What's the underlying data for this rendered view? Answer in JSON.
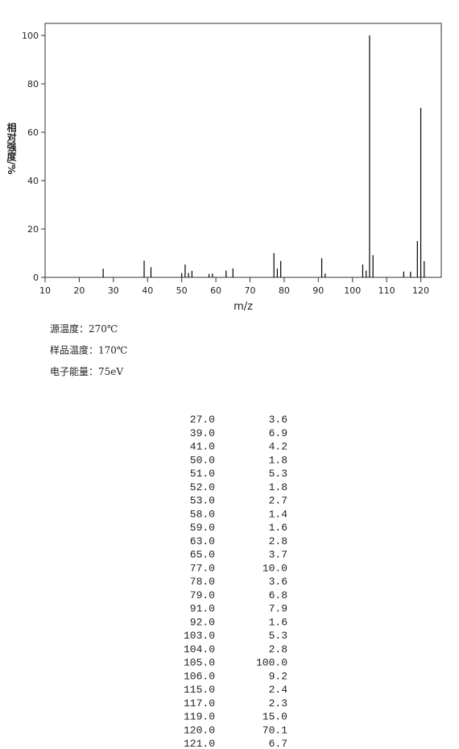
{
  "chart_data": {
    "type": "bar",
    "x_label": "m/z",
    "y_label": "相对强度/%",
    "x": [
      27,
      39,
      41,
      50,
      51,
      52,
      53,
      58,
      59,
      63,
      65,
      77,
      78,
      79,
      91,
      92,
      103,
      104,
      105,
      106,
      115,
      117,
      119,
      120,
      121
    ],
    "values": [
      3.6,
      6.9,
      4.2,
      1.8,
      5.3,
      1.8,
      2.7,
      1.4,
      1.6,
      2.8,
      3.7,
      10.0,
      3.6,
      6.8,
      7.9,
      1.6,
      5.3,
      2.8,
      100.0,
      9.2,
      2.4,
      2.3,
      15.0,
      70.1,
      6.7
    ],
    "color": "#000000",
    "xlim": [
      10,
      126
    ],
    "ylim": [
      0,
      105
    ],
    "xticks": [
      10,
      20,
      30,
      40,
      50,
      60,
      70,
      80,
      90,
      100,
      110,
      120
    ],
    "yticks": [
      0,
      20,
      40,
      60,
      80,
      100
    ]
  },
  "conditions": [
    "源温度：270℃",
    "样品温度：170℃",
    "电子能量：75eV"
  ],
  "table": {
    "rows": [
      [
        "27.0",
        "3.6"
      ],
      [
        "39.0",
        "6.9"
      ],
      [
        "41.0",
        "4.2"
      ],
      [
        "50.0",
        "1.8"
      ],
      [
        "51.0",
        "5.3"
      ],
      [
        "52.0",
        "1.8"
      ],
      [
        "53.0",
        "2.7"
      ],
      [
        "58.0",
        "1.4"
      ],
      [
        "59.0",
        "1.6"
      ],
      [
        "63.0",
        "2.8"
      ],
      [
        "65.0",
        "3.7"
      ],
      [
        "77.0",
        "10.0"
      ],
      [
        "78.0",
        "3.6"
      ],
      [
        "79.0",
        "6.8"
      ],
      [
        "91.0",
        "7.9"
      ],
      [
        "92.0",
        "1.6"
      ],
      [
        "103.0",
        "5.3"
      ],
      [
        "104.0",
        "2.8"
      ],
      [
        "105.0",
        "100.0"
      ],
      [
        "106.0",
        "9.2"
      ],
      [
        "115.0",
        "2.4"
      ],
      [
        "117.0",
        "2.3"
      ],
      [
        "119.0",
        "15.0"
      ],
      [
        "120.0",
        "70.1"
      ],
      [
        "121.0",
        "6.7"
      ]
    ]
  }
}
